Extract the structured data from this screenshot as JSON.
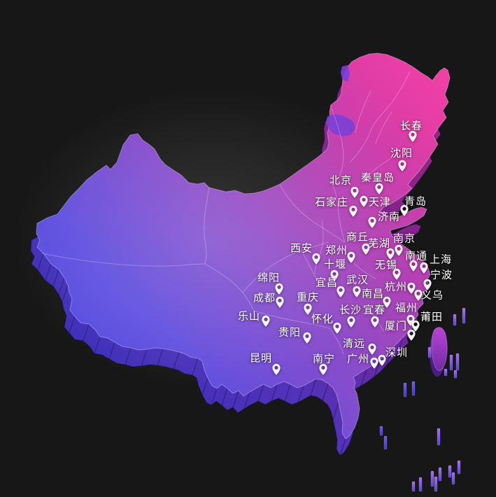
{
  "scene": {
    "background_color": "#171717"
  },
  "map": {
    "surface_gradient": [
      "#4a48e4",
      "#6050df",
      "#8a4cca",
      "#b441b4",
      "#e03da6",
      "#f741a5"
    ],
    "side_gradient": [
      "#2f2dbb",
      "#5232b8",
      "#7c2390",
      "#a82477"
    ],
    "taiwan_gradient": [
      "#bb44d6",
      "#6e2aa4"
    ],
    "pillar_gradient_purple": [
      "#a66ef0",
      "#5b3fd6"
    ],
    "pillar_gradient_blue": [
      "#6a5af0",
      "#4038c8"
    ],
    "notch_wedge_color": "#7b3fd6",
    "province_border_color": "rgba(255,255,255,0.27)",
    "coast_rim_color": "rgba(255,255,255,0.33)",
    "label_color": "#ffffff",
    "pin_color": "#ffffff"
  },
  "cities": [
    {
      "name": "长春",
      "label": [
        588,
        180
      ],
      "pin": [
        590,
        194
      ]
    },
    {
      "name": "沈阳",
      "label": [
        574,
        219
      ],
      "pin": [
        575,
        236
      ]
    },
    {
      "name": "北京",
      "label": [
        487,
        258
      ],
      "pin": [
        507,
        274
      ]
    },
    {
      "name": "秦皇岛",
      "label": [
        540,
        254
      ],
      "pin": [
        542,
        269
      ]
    },
    {
      "name": "天津",
      "label": [
        543,
        289
      ],
      "pin": [
        520,
        287
      ]
    },
    {
      "name": "石家庄",
      "label": [
        474,
        289
      ],
      "pin": [
        505,
        301
      ]
    },
    {
      "name": "青岛",
      "label": [
        594,
        288
      ],
      "pin": [
        578,
        300
      ]
    },
    {
      "name": "济南",
      "label": [
        556,
        310
      ],
      "pin": [
        532,
        317
      ]
    },
    {
      "name": "商丘",
      "label": [
        511,
        339
      ],
      "pin": [
        523,
        355
      ]
    },
    {
      "name": "南京",
      "label": [
        578,
        341
      ],
      "pin": [
        570,
        357
      ]
    },
    {
      "name": "芜湖",
      "label": [
        542,
        348
      ],
      "pin": [
        558,
        362
      ]
    },
    {
      "name": "西安",
      "label": [
        431,
        355
      ],
      "pin": [
        452,
        369
      ]
    },
    {
      "name": "郑州",
      "label": [
        481,
        358
      ],
      "pin": [
        502,
        367
      ]
    },
    {
      "name": "南通",
      "label": [
        595,
        366
      ],
      "pin": [
        591,
        379
      ]
    },
    {
      "name": "上海",
      "label": [
        630,
        371
      ],
      "pin": [
        606,
        382
      ]
    },
    {
      "name": "十堰",
      "label": [
        479,
        378
      ],
      "pin": [
        478,
        393
      ]
    },
    {
      "name": "无锡",
      "label": [
        552,
        379
      ],
      "pin": [
        567,
        391
      ]
    },
    {
      "name": "宁波",
      "label": [
        631,
        393
      ],
      "pin": [
        611,
        406
      ]
    },
    {
      "name": "绵阳",
      "label": [
        384,
        397
      ],
      "pin": [
        399,
        412
      ]
    },
    {
      "name": "武汉",
      "label": [
        511,
        400
      ],
      "pin": [
        510,
        416
      ]
    },
    {
      "name": "宜昌",
      "label": [
        467,
        404
      ],
      "pin": [
        487,
        416
      ]
    },
    {
      "name": "杭州",
      "label": [
        566,
        410
      ],
      "pin": [
        588,
        411
      ]
    },
    {
      "name": "义乌",
      "label": [
        618,
        422
      ],
      "pin": [
        598,
        421
      ]
    },
    {
      "name": "成都",
      "label": [
        378,
        426
      ],
      "pin": [
        400,
        431
      ]
    },
    {
      "name": "重庆",
      "label": [
        440,
        425
      ],
      "pin": [
        440,
        441
      ]
    },
    {
      "name": "南昌",
      "label": [
        533,
        420
      ],
      "pin": [
        553,
        431
      ]
    },
    {
      "name": "福州",
      "label": [
        581,
        440
      ],
      "pin": [
        587,
        457
      ]
    },
    {
      "name": "长沙",
      "label": [
        501,
        443
      ],
      "pin": [
        502,
        459
      ]
    },
    {
      "name": "宜春",
      "label": [
        535,
        443
      ],
      "pin": [
        536,
        459
      ]
    },
    {
      "name": "莆田",
      "label": [
        617,
        453
      ],
      "pin": [
        594,
        465
      ]
    },
    {
      "name": "乐山",
      "label": [
        356,
        452
      ],
      "pin": [
        380,
        458
      ]
    },
    {
      "name": "怀化",
      "label": [
        461,
        456
      ],
      "pin": [
        482,
        468
      ]
    },
    {
      "name": "厦门",
      "label": [
        566,
        466
      ],
      "pin": [
        588,
        478
      ]
    },
    {
      "name": "贵阳",
      "label": [
        414,
        475
      ],
      "pin": [
        439,
        482
      ]
    },
    {
      "name": "清远",
      "label": [
        506,
        491
      ],
      "pin": [
        532,
        498
      ]
    },
    {
      "name": "深圳",
      "label": [
        567,
        504
      ],
      "pin": [
        546,
        514
      ]
    },
    {
      "name": "广州",
      "label": [
        512,
        513
      ],
      "pin": [
        535,
        518
      ]
    },
    {
      "name": "昆明",
      "label": [
        373,
        512
      ],
      "pin": [
        395,
        527
      ]
    },
    {
      "name": "南宁",
      "label": [
        463,
        513
      ],
      "pin": [
        462,
        527
      ]
    }
  ]
}
